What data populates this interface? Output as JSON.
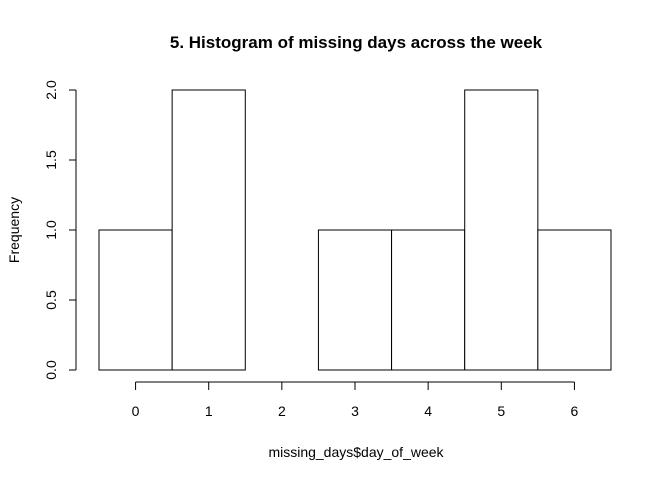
{
  "chart_data": {
    "type": "bar",
    "title": "5. Histogram of missing days across the week",
    "xlabel": "missing_days$day_of_week",
    "ylabel": "Frequency",
    "bins": [
      {
        "from": -0.5,
        "to": 0.5,
        "count": 1
      },
      {
        "from": 0.5,
        "to": 1.5,
        "count": 2
      },
      {
        "from": 1.5,
        "to": 2.5,
        "count": 0
      },
      {
        "from": 2.5,
        "to": 3.5,
        "count": 1
      },
      {
        "from": 3.5,
        "to": 4.5,
        "count": 1
      },
      {
        "from": 4.5,
        "to": 5.5,
        "count": 2
      },
      {
        "from": 5.5,
        "to": 6.5,
        "count": 1
      }
    ],
    "xticks": [
      0,
      1,
      2,
      3,
      4,
      5,
      6
    ],
    "xtick_labels": [
      "0",
      "1",
      "2",
      "3",
      "4",
      "5",
      "6"
    ],
    "yticks": [
      0,
      0.5,
      1,
      1.5,
      2
    ],
    "ytick_labels": [
      "0.0",
      "0.5",
      "1.0",
      "1.5",
      "2.0"
    ],
    "xlim": [
      -0.5,
      6.5
    ],
    "ylim": [
      0,
      2
    ],
    "grid": false,
    "colors": {
      "bar_fill": "#ffffff",
      "bar_stroke": "#000000"
    }
  }
}
